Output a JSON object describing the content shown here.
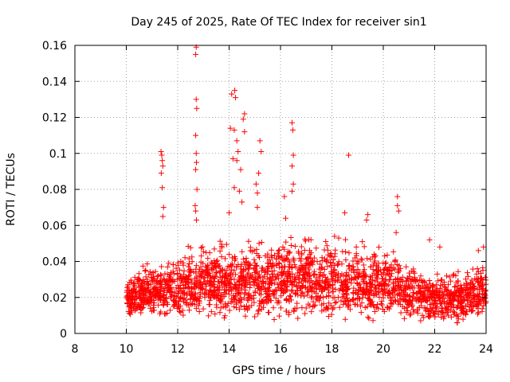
{
  "chart_data": {
    "type": "scatter",
    "title": "Day 245 of 2025, Rate Of TEC Index for receiver sin1",
    "xlabel": "GPS time / hours",
    "ylabel": "ROTI / TECUs",
    "xlim": [
      8,
      24
    ],
    "ylim": [
      0,
      0.16
    ],
    "xticks": [
      8,
      10,
      12,
      14,
      16,
      18,
      20,
      22,
      24
    ],
    "xtick_labels": [
      "8",
      "10",
      "12",
      "14",
      "16",
      "18",
      "20",
      "22",
      "24"
    ],
    "yticks": [
      0,
      0.02,
      0.04,
      0.06,
      0.08,
      0.1,
      0.12,
      0.14,
      0.16
    ],
    "ytick_labels": [
      "0",
      "0.02",
      "0.04",
      "0.06",
      "0.08",
      "0.1",
      "0.12",
      "0.14",
      "0.16"
    ],
    "grid": true,
    "marker": "+",
    "marker_color": "#ff0000",
    "dense_band": {
      "x_start": 10.0,
      "x_end": 24.0,
      "note": "dense cloud of ROTI samples mostly between 0.005 and 0.05 TECU/min",
      "envelope": [
        {
          "x": 10.0,
          "low": 0.008,
          "high": 0.034
        },
        {
          "x": 11.0,
          "low": 0.008,
          "high": 0.042
        },
        {
          "x": 12.0,
          "low": 0.006,
          "high": 0.05
        },
        {
          "x": 13.0,
          "low": 0.006,
          "high": 0.055
        },
        {
          "x": 14.0,
          "low": 0.006,
          "high": 0.055
        },
        {
          "x": 15.0,
          "low": 0.006,
          "high": 0.057
        },
        {
          "x": 16.0,
          "low": 0.006,
          "high": 0.058
        },
        {
          "x": 17.0,
          "low": 0.005,
          "high": 0.06
        },
        {
          "x": 18.0,
          "low": 0.005,
          "high": 0.06
        },
        {
          "x": 19.0,
          "low": 0.005,
          "high": 0.056
        },
        {
          "x": 20.0,
          "low": 0.006,
          "high": 0.05
        },
        {
          "x": 21.0,
          "low": 0.005,
          "high": 0.045
        },
        {
          "x": 22.0,
          "low": 0.005,
          "high": 0.036
        },
        {
          "x": 23.0,
          "low": 0.004,
          "high": 0.04
        },
        {
          "x": 24.0,
          "low": 0.006,
          "high": 0.045
        }
      ]
    },
    "outlier_points": [
      {
        "x": 11.35,
        "y": 0.101
      },
      {
        "x": 11.38,
        "y": 0.099
      },
      {
        "x": 11.4,
        "y": 0.096
      },
      {
        "x": 11.42,
        "y": 0.093
      },
      {
        "x": 11.36,
        "y": 0.089
      },
      {
        "x": 11.4,
        "y": 0.081
      },
      {
        "x": 11.45,
        "y": 0.07
      },
      {
        "x": 11.42,
        "y": 0.065
      },
      {
        "x": 12.72,
        "y": 0.159
      },
      {
        "x": 12.7,
        "y": 0.155
      },
      {
        "x": 12.72,
        "y": 0.13
      },
      {
        "x": 12.74,
        "y": 0.125
      },
      {
        "x": 12.7,
        "y": 0.11
      },
      {
        "x": 12.72,
        "y": 0.1
      },
      {
        "x": 12.73,
        "y": 0.095
      },
      {
        "x": 12.7,
        "y": 0.091
      },
      {
        "x": 12.75,
        "y": 0.08
      },
      {
        "x": 12.68,
        "y": 0.071
      },
      {
        "x": 12.7,
        "y": 0.068
      },
      {
        "x": 12.73,
        "y": 0.063
      },
      {
        "x": 14.1,
        "y": 0.133
      },
      {
        "x": 14.22,
        "y": 0.135
      },
      {
        "x": 14.25,
        "y": 0.131
      },
      {
        "x": 14.6,
        "y": 0.122
      },
      {
        "x": 14.55,
        "y": 0.119
      },
      {
        "x": 14.05,
        "y": 0.114
      },
      {
        "x": 14.2,
        "y": 0.113
      },
      {
        "x": 14.6,
        "y": 0.112
      },
      {
        "x": 14.3,
        "y": 0.107
      },
      {
        "x": 14.35,
        "y": 0.101
      },
      {
        "x": 14.15,
        "y": 0.097
      },
      {
        "x": 14.3,
        "y": 0.096
      },
      {
        "x": 14.45,
        "y": 0.091
      },
      {
        "x": 14.2,
        "y": 0.081
      },
      {
        "x": 14.4,
        "y": 0.079
      },
      {
        "x": 14.5,
        "y": 0.073
      },
      {
        "x": 14.0,
        "y": 0.067
      },
      {
        "x": 15.2,
        "y": 0.107
      },
      {
        "x": 15.25,
        "y": 0.101
      },
      {
        "x": 15.15,
        "y": 0.089
      },
      {
        "x": 15.05,
        "y": 0.083
      },
      {
        "x": 15.1,
        "y": 0.078
      },
      {
        "x": 15.1,
        "y": 0.07
      },
      {
        "x": 16.45,
        "y": 0.117
      },
      {
        "x": 16.48,
        "y": 0.113
      },
      {
        "x": 16.5,
        "y": 0.099
      },
      {
        "x": 16.45,
        "y": 0.093
      },
      {
        "x": 16.5,
        "y": 0.083
      },
      {
        "x": 16.45,
        "y": 0.079
      },
      {
        "x": 16.15,
        "y": 0.076
      },
      {
        "x": 16.2,
        "y": 0.064
      },
      {
        "x": 18.65,
        "y": 0.099
      },
      {
        "x": 18.5,
        "y": 0.067
      },
      {
        "x": 19.4,
        "y": 0.066
      },
      {
        "x": 19.35,
        "y": 0.063
      },
      {
        "x": 20.55,
        "y": 0.076
      },
      {
        "x": 20.55,
        "y": 0.071
      },
      {
        "x": 20.6,
        "y": 0.068
      },
      {
        "x": 20.5,
        "y": 0.056
      },
      {
        "x": 21.8,
        "y": 0.052
      },
      {
        "x": 22.2,
        "y": 0.048
      },
      {
        "x": 23.9,
        "y": 0.048
      },
      {
        "x": 23.7,
        "y": 0.046
      }
    ]
  }
}
